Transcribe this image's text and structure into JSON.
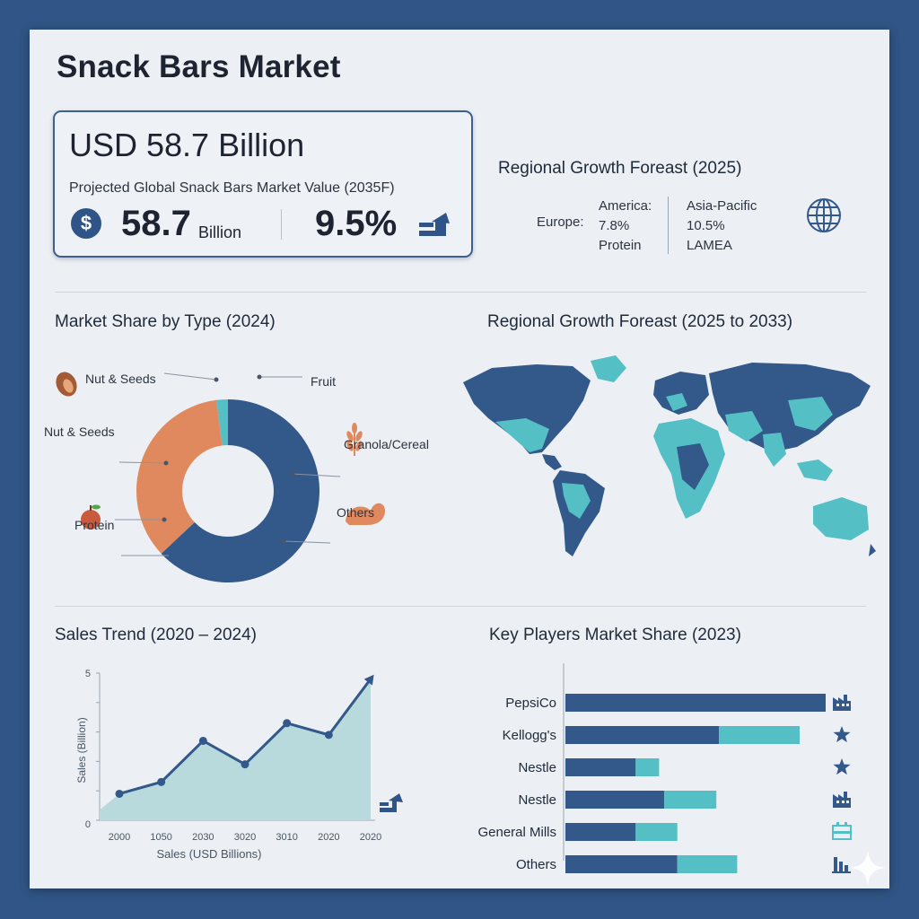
{
  "title": "Snack Bars Market",
  "hero": {
    "value": "USD 58.7 Billion",
    "subtitle": "Projected Global Snack Bars Market Value (2035F)",
    "currency_symbol": "$",
    "big_number": "58.7",
    "big_unit": "Billion",
    "growth": "9.5%"
  },
  "regional_2025": {
    "title": "Regional Growth Foreast (2025)",
    "col1_label": "Europe:",
    "col2": [
      "America:",
      "7.8%",
      "Protein"
    ],
    "col3": [
      "Asia-Pacific",
      "10.5%",
      "LAMEA"
    ]
  },
  "market_share": {
    "title": "Market Share by Type (2024)",
    "labels": {
      "left_top": "Nut & Seeds",
      "left_mid": "Nut & Seeds",
      "left_bottom": "Protein",
      "right_top": "Fruit",
      "right_mid": "Granola/Cereal",
      "right_bottom": "Others"
    }
  },
  "map": {
    "title": "Regional Growth Foreast (2025 to 2033)"
  },
  "sales_trend": {
    "title": "Sales Trend (2020 – 2024)",
    "ylabel": "Sales (Billion)",
    "xlabel": "Sales (USD Billions)",
    "y_ticks": [
      "5",
      "0"
    ]
  },
  "key_players": {
    "title": "Key Players Market Share (2023)"
  },
  "colors": {
    "navy": "#33588a",
    "teal": "#55bfc6",
    "orange": "#e0895f",
    "area": "#b9dadd"
  },
  "chart_data": [
    {
      "type": "pie",
      "title": "Market Share by Type (2024)",
      "categories": [
        "Others",
        "Nut & Seeds",
        "Fruit"
      ],
      "values": [
        63,
        35,
        2
      ],
      "colors": [
        "#33588a",
        "#e0895f",
        "#55bfc6"
      ]
    },
    {
      "type": "area",
      "title": "Sales Trend (2020 – 2024)",
      "x": [
        "2000",
        "1050",
        "2030",
        "3020",
        "3010",
        "2020",
        "2020"
      ],
      "values": [
        0.9,
        1.3,
        2.7,
        1.9,
        3.3,
        2.9,
        4.8
      ],
      "ylim": [
        0,
        5
      ],
      "ylabel": "Sales (Billion)",
      "xlabel": "Sales (USD Billions)"
    },
    {
      "type": "bar",
      "title": "Key Players Market Share (2023)",
      "categories": [
        "PepsiCo",
        "Kellogg's",
        "Nestle",
        "Nestle",
        "General Mills",
        "Others"
      ],
      "series": [
        {
          "values": [
            100,
            59,
            27,
            38,
            27,
            43
          ]
        },
        {
          "values": [
            0,
            31,
            9,
            20,
            16,
            23
          ]
        }
      ],
      "icons": [
        "factory-icon",
        "star-icon",
        "star-icon",
        "factory-icon",
        "production-line-icon",
        "bar-chart-icon"
      ],
      "xlim": [
        0,
        100
      ]
    }
  ]
}
